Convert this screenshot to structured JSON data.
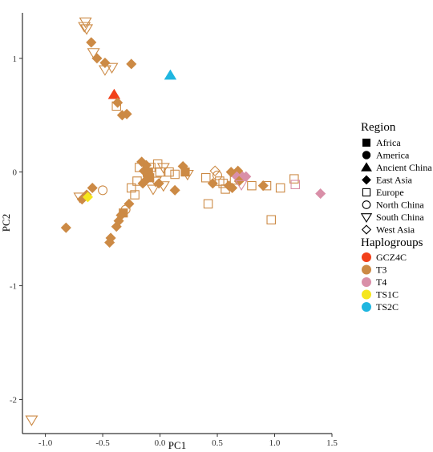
{
  "chart_data": {
    "type": "scatter",
    "title": "",
    "xlabel": "PC1",
    "ylabel": "PC2",
    "xlim": [
      -1.2,
      1.5
    ],
    "ylim": [
      -2.3,
      1.4
    ],
    "x_ticks": [
      -1.0,
      -0.5,
      0.0,
      0.5,
      1.0,
      1.5
    ],
    "x_tick_labels": [
      "-1.0",
      "-0.5",
      "0.0",
      "0.5",
      "1.0",
      "1.5"
    ],
    "y_ticks": [
      -2,
      -1,
      0,
      1
    ],
    "y_tick_labels": [
      "-2",
      "-1",
      "0",
      "1"
    ],
    "grid": false,
    "legends": [
      {
        "title": "Region",
        "placement": "right",
        "entries": [
          {
            "label": "Africa",
            "shape": "square-filled"
          },
          {
            "label": "America",
            "shape": "circle-filled"
          },
          {
            "label": "Ancient China",
            "shape": "triangle-filled"
          },
          {
            "label": "East Asia",
            "shape": "diamond-filled"
          },
          {
            "label": "Europe",
            "shape": "square-open"
          },
          {
            "label": "North China",
            "shape": "circle-open"
          },
          {
            "label": "South China",
            "shape": "triangle-down-open"
          },
          {
            "label": "West Asia",
            "shape": "diamond-open"
          }
        ]
      },
      {
        "title": "Haplogroups",
        "placement": "right",
        "entries": [
          {
            "label": "GCZ4C",
            "color": "#f2401a"
          },
          {
            "label": "T3",
            "color": "#cc8a45"
          },
          {
            "label": "T4",
            "color": "#d98fa8"
          },
          {
            "label": "TS1C",
            "color": "#f5e61c"
          },
          {
            "label": "TS2C",
            "color": "#1fb6e0"
          }
        ]
      }
    ],
    "colors": {
      "GCZ4C": "#f2401a",
      "T3": "#cc8a45",
      "T4": "#d98fa8",
      "TS1C": "#f5e61c",
      "TS2C": "#1fb6e0"
    },
    "points": [
      {
        "x": -0.65,
        "y": 1.32,
        "shape": "triangle-down-open",
        "group": "T3"
      },
      {
        "x": -0.66,
        "y": 1.28,
        "shape": "triangle-down-open",
        "group": "T3"
      },
      {
        "x": -0.64,
        "y": 1.26,
        "shape": "triangle-down-open",
        "group": "T3"
      },
      {
        "x": -0.6,
        "y": 1.14,
        "shape": "diamond-filled",
        "group": "T3"
      },
      {
        "x": -0.58,
        "y": 1.05,
        "shape": "triangle-down-open",
        "group": "T3"
      },
      {
        "x": -0.55,
        "y": 1.0,
        "shape": "diamond-filled",
        "group": "T3"
      },
      {
        "x": -0.48,
        "y": 0.96,
        "shape": "diamond-filled",
        "group": "T3"
      },
      {
        "x": -0.42,
        "y": 0.92,
        "shape": "triangle-down-open",
        "group": "T3"
      },
      {
        "x": -0.48,
        "y": 0.9,
        "shape": "triangle-down-open",
        "group": "T3"
      },
      {
        "x": -0.25,
        "y": 0.95,
        "shape": "diamond-filled",
        "group": "T3"
      },
      {
        "x": 0.09,
        "y": 0.85,
        "shape": "triangle-filled",
        "group": "TS2C"
      },
      {
        "x": -0.4,
        "y": 0.68,
        "shape": "triangle-filled",
        "group": "GCZ4C"
      },
      {
        "x": -0.37,
        "y": 0.61,
        "shape": "diamond-filled",
        "group": "T3"
      },
      {
        "x": -0.38,
        "y": 0.58,
        "shape": "square-open",
        "group": "T3"
      },
      {
        "x": -0.33,
        "y": 0.5,
        "shape": "diamond-filled",
        "group": "T3"
      },
      {
        "x": -0.29,
        "y": 0.51,
        "shape": "diamond-filled",
        "group": "T3"
      },
      {
        "x": -0.16,
        "y": 0.09,
        "shape": "diamond-filled",
        "group": "T3"
      },
      {
        "x": -0.12,
        "y": 0.06,
        "shape": "diamond-filled",
        "group": "T3"
      },
      {
        "x": -0.18,
        "y": 0.04,
        "shape": "square-open",
        "group": "T3"
      },
      {
        "x": -0.08,
        "y": 0.04,
        "shape": "square-open",
        "group": "T3"
      },
      {
        "x": -0.14,
        "y": 0.01,
        "shape": "diamond-filled",
        "group": "T3"
      },
      {
        "x": -0.1,
        "y": 0.0,
        "shape": "square-filled",
        "group": "T3"
      },
      {
        "x": -0.11,
        "y": -0.03,
        "shape": "circle-filled",
        "group": "T3"
      },
      {
        "x": -0.09,
        "y": -0.05,
        "shape": "square-filled",
        "group": "T3"
      },
      {
        "x": -0.12,
        "y": -0.07,
        "shape": "diamond-filled",
        "group": "T3"
      },
      {
        "x": -0.15,
        "y": -0.1,
        "shape": "diamond-filled",
        "group": "T3"
      },
      {
        "x": -0.2,
        "y": -0.08,
        "shape": "square-open",
        "group": "T3"
      },
      {
        "x": -0.25,
        "y": -0.14,
        "shape": "square-open",
        "group": "T3"
      },
      {
        "x": -0.22,
        "y": -0.2,
        "shape": "square-open",
        "group": "T3"
      },
      {
        "x": -0.27,
        "y": -0.28,
        "shape": "diamond-filled",
        "group": "T3"
      },
      {
        "x": -0.3,
        "y": -0.33,
        "shape": "circle-open",
        "group": "T3"
      },
      {
        "x": -0.32,
        "y": -0.36,
        "shape": "square-filled",
        "group": "T3"
      },
      {
        "x": -0.34,
        "y": -0.38,
        "shape": "diamond-filled",
        "group": "T3"
      },
      {
        "x": -0.36,
        "y": -0.43,
        "shape": "diamond-filled",
        "group": "T3"
      },
      {
        "x": -0.38,
        "y": -0.48,
        "shape": "diamond-filled",
        "group": "T3"
      },
      {
        "x": -0.43,
        "y": -0.58,
        "shape": "diamond-filled",
        "group": "T3"
      },
      {
        "x": -0.44,
        "y": -0.62,
        "shape": "diamond-filled",
        "group": "T3"
      },
      {
        "x": 0.0,
        "y": 0.0,
        "shape": "square-open",
        "group": "T3"
      },
      {
        "x": -0.04,
        "y": -0.08,
        "shape": "triangle-down-open",
        "group": "T3"
      },
      {
        "x": -0.01,
        "y": -0.1,
        "shape": "diamond-filled",
        "group": "T3"
      },
      {
        "x": 0.03,
        "y": -0.12,
        "shape": "triangle-down-open",
        "group": "T3"
      },
      {
        "x": -0.06,
        "y": -0.15,
        "shape": "triangle-down-open",
        "group": "T3"
      },
      {
        "x": 0.08,
        "y": 0.0,
        "shape": "square-open",
        "group": "T3"
      },
      {
        "x": -0.02,
        "y": 0.07,
        "shape": "square-open",
        "group": "T3"
      },
      {
        "x": 0.03,
        "y": 0.04,
        "shape": "triangle-down-open",
        "group": "T3"
      },
      {
        "x": 0.13,
        "y": -0.02,
        "shape": "square-open",
        "group": "T3"
      },
      {
        "x": 0.13,
        "y": -0.16,
        "shape": "diamond-filled",
        "group": "T3"
      },
      {
        "x": 0.2,
        "y": 0.05,
        "shape": "diamond-filled",
        "group": "T3"
      },
      {
        "x": 0.22,
        "y": 0.0,
        "shape": "square-filled",
        "group": "T3"
      },
      {
        "x": 0.24,
        "y": -0.02,
        "shape": "triangle-down-open",
        "group": "T3"
      },
      {
        "x": 0.4,
        "y": -0.05,
        "shape": "square-open",
        "group": "T3"
      },
      {
        "x": 0.42,
        "y": -0.28,
        "shape": "square-open",
        "group": "T3"
      },
      {
        "x": 0.46,
        "y": -0.1,
        "shape": "diamond-filled",
        "group": "T3"
      },
      {
        "x": 0.48,
        "y": 0.01,
        "shape": "diamond-open",
        "group": "T3"
      },
      {
        "x": 0.5,
        "y": -0.03,
        "shape": "circle-open",
        "group": "T3"
      },
      {
        "x": 0.52,
        "y": -0.08,
        "shape": "square-open",
        "group": "T3"
      },
      {
        "x": 0.55,
        "y": -0.1,
        "shape": "square-open",
        "group": "T3"
      },
      {
        "x": 0.57,
        "y": -0.15,
        "shape": "square-open",
        "group": "T3"
      },
      {
        "x": 0.6,
        "y": -0.12,
        "shape": "diamond-filled",
        "group": "T3"
      },
      {
        "x": 0.63,
        "y": -0.14,
        "shape": "diamond-filled",
        "group": "T3"
      },
      {
        "x": 0.62,
        "y": 0.0,
        "shape": "diamond-filled",
        "group": "T3"
      },
      {
        "x": 0.68,
        "y": 0.01,
        "shape": "diamond-filled",
        "group": "T3"
      },
      {
        "x": 0.65,
        "y": -0.07,
        "shape": "square-open",
        "group": "T3"
      },
      {
        "x": 0.67,
        "y": -0.04,
        "shape": "diamond-filled",
        "group": "T4"
      },
      {
        "x": 0.72,
        "y": -0.04,
        "shape": "diamond-filled",
        "group": "T4"
      },
      {
        "x": 0.75,
        "y": -0.04,
        "shape": "diamond-filled",
        "group": "T4"
      },
      {
        "x": 0.69,
        "y": -0.08,
        "shape": "diamond-filled",
        "group": "T3"
      },
      {
        "x": 0.71,
        "y": -0.11,
        "shape": "triangle-down-open",
        "group": "T4"
      },
      {
        "x": 0.8,
        "y": -0.12,
        "shape": "square-open",
        "group": "T3"
      },
      {
        "x": 0.9,
        "y": -0.12,
        "shape": "diamond-filled",
        "group": "T3"
      },
      {
        "x": 0.93,
        "y": -0.12,
        "shape": "square-open",
        "group": "T3"
      },
      {
        "x": 0.97,
        "y": -0.42,
        "shape": "square-open",
        "group": "T3"
      },
      {
        "x": 1.05,
        "y": -0.14,
        "shape": "square-open",
        "group": "T3"
      },
      {
        "x": 1.17,
        "y": -0.06,
        "shape": "square-open",
        "group": "T3"
      },
      {
        "x": 1.18,
        "y": -0.11,
        "shape": "square-open",
        "group": "T4"
      },
      {
        "x": 1.4,
        "y": -0.19,
        "shape": "diamond-filled",
        "group": "T4"
      },
      {
        "x": -0.5,
        "y": -0.16,
        "shape": "circle-open",
        "group": "T3"
      },
      {
        "x": -0.59,
        "y": -0.14,
        "shape": "diamond-filled",
        "group": "T3"
      },
      {
        "x": -0.64,
        "y": -0.2,
        "shape": "diamond-filled",
        "group": "T3"
      },
      {
        "x": -0.7,
        "y": -0.22,
        "shape": "triangle-down-open",
        "group": "T3"
      },
      {
        "x": -0.68,
        "y": -0.24,
        "shape": "diamond-filled",
        "group": "T3"
      },
      {
        "x": -0.63,
        "y": -0.22,
        "shape": "diamond-filled",
        "group": "TS1C"
      },
      {
        "x": -0.82,
        "y": -0.49,
        "shape": "diamond-filled",
        "group": "T3"
      },
      {
        "x": -1.12,
        "y": -2.18,
        "shape": "triangle-down-open",
        "group": "T3"
      }
    ]
  }
}
